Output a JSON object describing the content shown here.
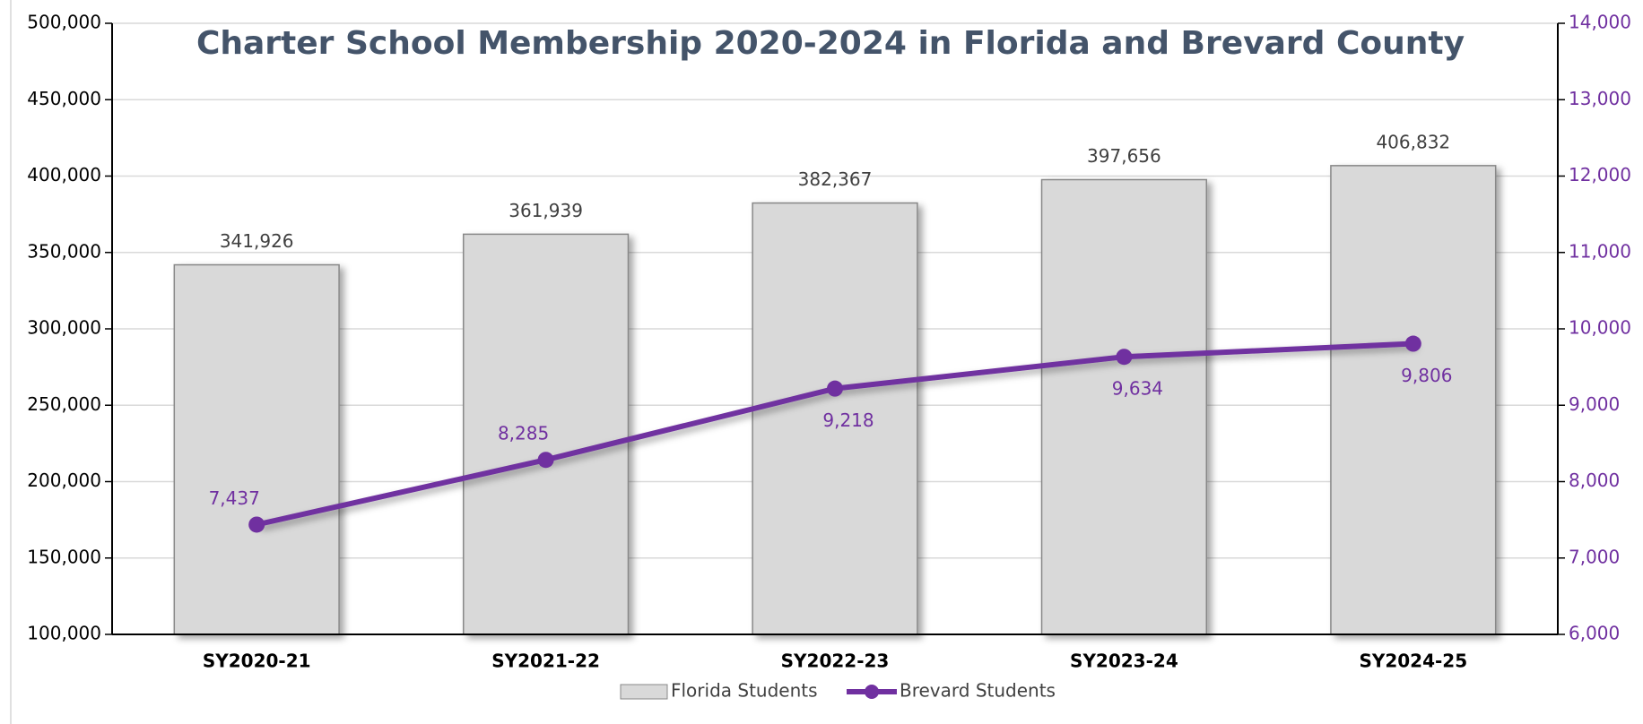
{
  "chart_data": {
    "type": "bar",
    "title": "Charter School Membership 2020-2024 in Florida and Brevard County",
    "categories": [
      "SY2020-21",
      "SY2021-22",
      "SY2022-23",
      "SY2023-24",
      "SY2024-25"
    ],
    "series": [
      {
        "name": "Florida Students",
        "type": "bar",
        "color": "#d9d9d9",
        "values": [
          341926,
          361939,
          382367,
          397656,
          406832
        ],
        "value_labels": [
          "341,926",
          "361,939",
          "382,367",
          "397,656",
          "406,832"
        ]
      },
      {
        "name": "Brevard Students",
        "type": "line",
        "axis": "y2",
        "color": "#7030a0",
        "values": [
          7437,
          8285,
          9218,
          9634,
          9806
        ],
        "value_labels": [
          "7,437",
          "8,285",
          "9,218",
          "9,634",
          "9,806"
        ]
      }
    ],
    "ylim": [
      100000,
      500000
    ],
    "yticks": [
      {
        "value": 100000,
        "label": "100,000"
      },
      {
        "value": 150000,
        "label": "150,000"
      },
      {
        "value": 200000,
        "label": "200,000"
      },
      {
        "value": 250000,
        "label": "250,000"
      },
      {
        "value": 300000,
        "label": "300,000"
      },
      {
        "value": 350000,
        "label": "350,000"
      },
      {
        "value": 400000,
        "label": "400,000"
      },
      {
        "value": 450000,
        "label": "450,000"
      },
      {
        "value": 500000,
        "label": "500,000"
      }
    ],
    "y2lim": [
      6000,
      14000
    ],
    "y2ticks": [
      {
        "value": 6000,
        "label": "6,000"
      },
      {
        "value": 7000,
        "label": "7,000"
      },
      {
        "value": 8000,
        "label": "8,000"
      },
      {
        "value": 9000,
        "label": "9,000"
      },
      {
        "value": 10000,
        "label": "10,000"
      },
      {
        "value": 11000,
        "label": "11,000"
      },
      {
        "value": 12000,
        "label": "12,000"
      },
      {
        "value": 13000,
        "label": "13,000"
      },
      {
        "value": 14000,
        "label": "14,000"
      }
    ],
    "grid": true,
    "legend": "bottom"
  }
}
